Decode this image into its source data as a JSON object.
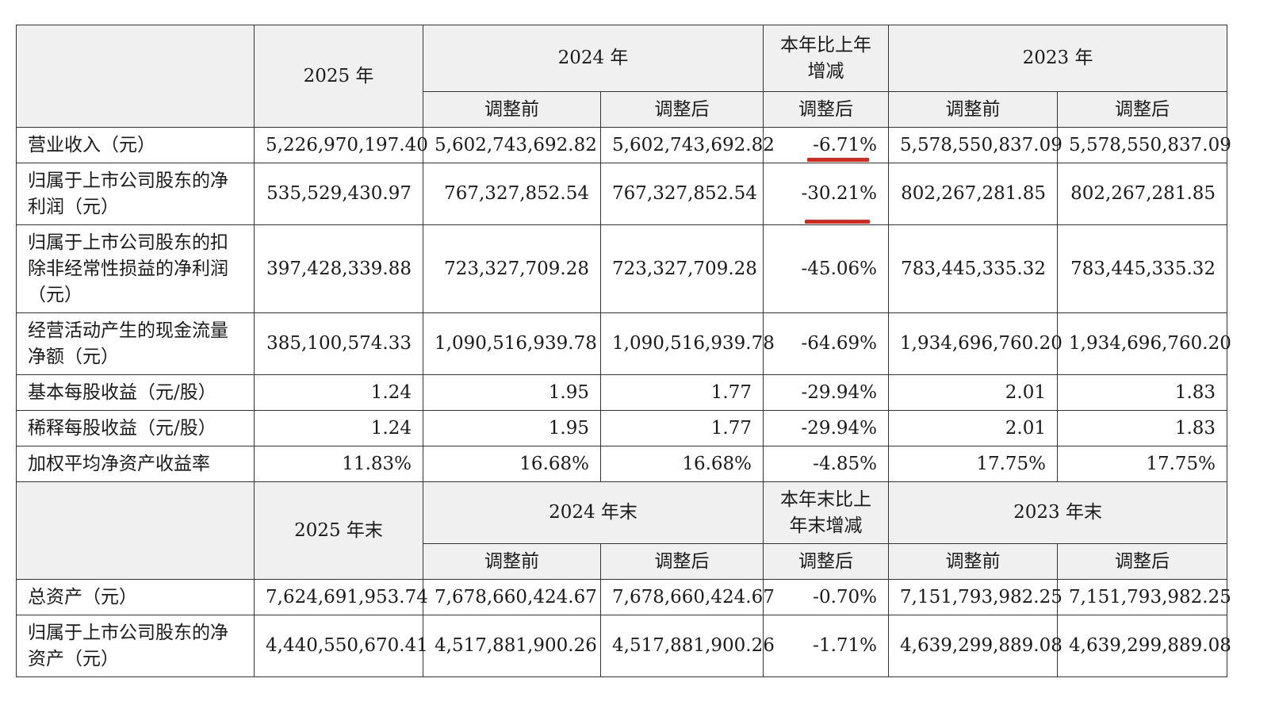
{
  "colors": {
    "underline": "#d62a1e",
    "header_bg": "#f0f0f0"
  },
  "header1": {
    "year2025": "2025 年",
    "year2024": "2024 年",
    "change": "本年比上年增减",
    "year2023": "2023 年",
    "before": "调整前",
    "after": "调整后"
  },
  "header2": {
    "year2025": "2025 年末",
    "year2024": "2024 年末",
    "change": "本年末比上年末增减",
    "year2023": "2023 年末",
    "before": "调整前",
    "after": "调整后"
  },
  "rows": [
    {
      "label": "营业收入（元）",
      "v2025": "5,226,970,197.40",
      "v2024_before": "5,602,743,692.82",
      "v2024_after": "5,602,743,692.82",
      "change": "-6.71%",
      "v2023_before": "5,578,550,837.09",
      "v2023_after": "5,578,550,837.09"
    },
    {
      "label": "归属于上市公司股东的净利润（元）",
      "v2025": "535,529,430.97",
      "v2024_before": "767,327,852.54",
      "v2024_after": "767,327,852.54",
      "change": "-30.21%",
      "v2023_before": "802,267,281.85",
      "v2023_after": "802,267,281.85"
    },
    {
      "label": "归属于上市公司股东的扣除非经常性损益的净利润（元）",
      "v2025": "397,428,339.88",
      "v2024_before": "723,327,709.28",
      "v2024_after": "723,327,709.28",
      "change": "-45.06%",
      "v2023_before": "783,445,335.32",
      "v2023_after": "783,445,335.32"
    },
    {
      "label": "经营活动产生的现金流量净额（元）",
      "v2025": "385,100,574.33",
      "v2024_before": "1,090,516,939.78",
      "v2024_after": "1,090,516,939.78",
      "change": "-64.69%",
      "v2023_before": "1,934,696,760.20",
      "v2023_after": "1,934,696,760.20"
    },
    {
      "label": "基本每股收益（元/股）",
      "v2025": "1.24",
      "v2024_before": "1.95",
      "v2024_after": "1.77",
      "change": "-29.94%",
      "v2023_before": "2.01",
      "v2023_after": "1.83"
    },
    {
      "label": "稀释每股收益（元/股）",
      "v2025": "1.24",
      "v2024_before": "1.95",
      "v2024_after": "1.77",
      "change": "-29.94%",
      "v2023_before": "2.01",
      "v2023_after": "1.83"
    },
    {
      "label": "加权平均净资产收益率",
      "v2025": "11.83%",
      "v2024_before": "16.68%",
      "v2024_after": "16.68%",
      "change": "-4.85%",
      "v2023_before": "17.75%",
      "v2023_after": "17.75%"
    }
  ],
  "rows2": [
    {
      "label": "总资产（元）",
      "v2025": "7,624,691,953.74",
      "v2024_before": "7,678,660,424.67",
      "v2024_after": "7,678,660,424.67",
      "change": "-0.70%",
      "v2023_before": "7,151,793,982.25",
      "v2023_after": "7,151,793,982.25"
    },
    {
      "label": "归属于上市公司股东的净资产（元）",
      "v2025": "4,440,550,670.41",
      "v2024_before": "4,517,881,900.26",
      "v2024_after": "4,517,881,900.26",
      "change": "-1.71%",
      "v2023_before": "4,639,299,889.08",
      "v2023_after": "4,639,299,889.08"
    }
  ]
}
